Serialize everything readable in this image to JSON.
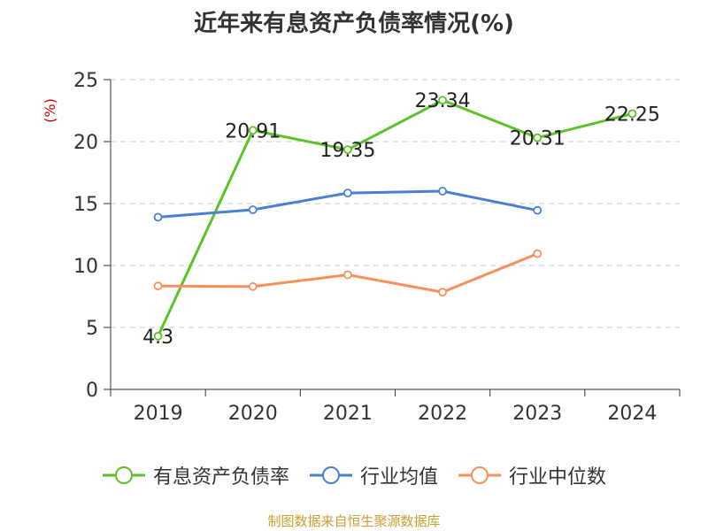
{
  "chart_data": {
    "type": "line",
    "title": "近年来有息资产负债率情况(%)",
    "ylabel": "(%)",
    "xlabel": "",
    "categories": [
      "2019",
      "2020",
      "2021",
      "2022",
      "2023",
      "2024"
    ],
    "ylim": [
      0,
      25
    ],
    "yticks": [
      0,
      5,
      10,
      15,
      20,
      25
    ],
    "grid": true,
    "legend_position": "bottom",
    "series": [
      {
        "name": "有息资产负债率",
        "color": "#5dc129",
        "values": [
          4.3,
          20.91,
          19.35,
          23.34,
          20.31,
          22.25
        ],
        "labels": [
          "4.3",
          "20.91",
          "19.35",
          "23.34",
          "20.31",
          "22.25"
        ]
      },
      {
        "name": "行业均值",
        "color": "#4b7fd6",
        "values": [
          13.9,
          14.5,
          15.85,
          16.0,
          14.45,
          null
        ]
      },
      {
        "name": "行业中位数",
        "color": "#f7905c",
        "values": [
          8.35,
          8.3,
          9.25,
          7.85,
          10.95,
          null
        ]
      }
    ]
  },
  "source": "制图数据来自恒生聚源数据库"
}
